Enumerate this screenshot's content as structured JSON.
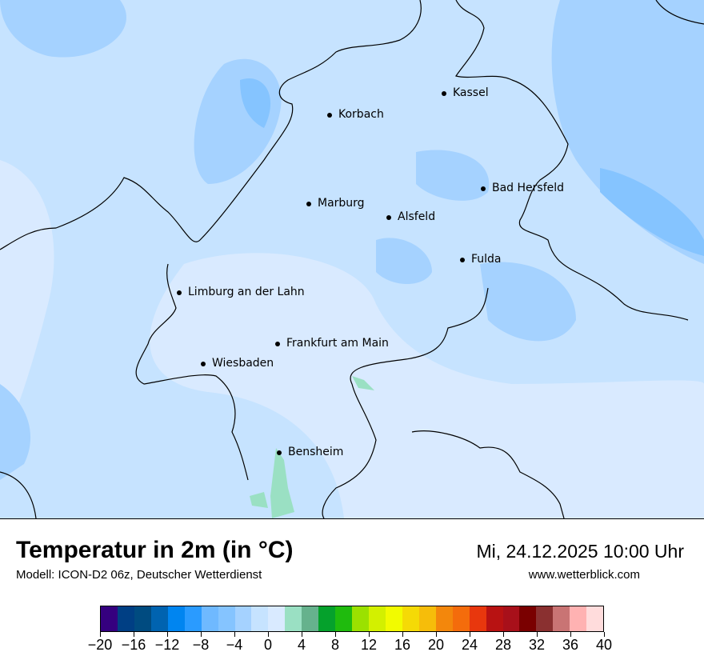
{
  "header": {
    "title": "Temperatur in 2m (in °C)",
    "subtitle": "Modell: ICON-D2 06z, Deutscher Wetterdienst",
    "datetime": "Mi, 24.12.2025 10:00 Uhr",
    "website": "www.wetterblick.com"
  },
  "map": {
    "cities": [
      {
        "name": "Kassel"
      },
      {
        "name": "Korbach"
      },
      {
        "name": "Bad Hersfeld"
      },
      {
        "name": "Marburg"
      },
      {
        "name": "Alsfeld"
      },
      {
        "name": "Fulda"
      },
      {
        "name": "Limburg an der Lahn"
      },
      {
        "name": "Frankfurt am Main"
      },
      {
        "name": "Wiesbaden"
      },
      {
        "name": "Bensheim"
      }
    ]
  },
  "colorbar": {
    "unit": "°C",
    "min": -20,
    "max": 40,
    "step": 2,
    "tick_labels": [
      "−20",
      "−16",
      "−12",
      "−8",
      "−4",
      "0",
      "4",
      "8",
      "12",
      "16",
      "20",
      "24",
      "28",
      "32",
      "36",
      "40"
    ],
    "colors": [
      "#35007f",
      "#003f84",
      "#004b80",
      "#0063b0",
      "#0085f0",
      "#2a9bff",
      "#6fb9ff",
      "#85c4ff",
      "#a5d2ff",
      "#c6e3ff",
      "#d9eaff",
      "#9ae0c3",
      "#66b28d",
      "#05a12c",
      "#1fbb0d",
      "#9be100",
      "#d3f000",
      "#f2fb00",
      "#f5da06",
      "#f6bd0a",
      "#f3870c",
      "#f46c0c",
      "#e8370d",
      "#b81212",
      "#a8101a",
      "#7a0000",
      "#8a3030",
      "#c97474",
      "#ffb2b2",
      "#ffdcdc"
    ]
  }
}
